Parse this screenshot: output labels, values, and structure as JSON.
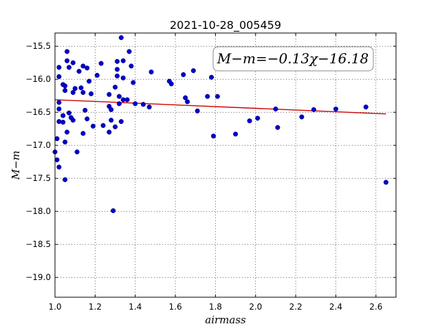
{
  "chart_data": {
    "type": "scatter",
    "title": "2021-10-28_005459",
    "xlabel": "airmass",
    "ylabel": "M−m",
    "xlim": [
      1.0,
      2.7
    ],
    "ylim": [
      -19.3,
      -15.3
    ],
    "y_inverted": true,
    "grid": true,
    "x_ticks": [
      1.0,
      1.2,
      1.4,
      1.6,
      1.8,
      2.0,
      2.2,
      2.4,
      2.6
    ],
    "x_tick_labels": [
      "1.0",
      "1.2",
      "1.4",
      "1.6",
      "1.8",
      "2.0",
      "2.2",
      "2.4",
      "2.6"
    ],
    "y_ticks": [
      -15.5,
      -16.0,
      -16.5,
      -17.0,
      -17.5,
      -18.0,
      -18.5,
      -19.0
    ],
    "y_tick_labels": [
      "−15.5",
      "−16.0",
      "−16.5",
      "−17.0",
      "−17.5",
      "−18.0",
      "−18.5",
      "−19.0"
    ],
    "annotation": "M−m=−0.13χ−16.18",
    "fit": {
      "slope": -0.13,
      "intercept": -16.18,
      "x_range": [
        1.0,
        2.65
      ],
      "color": "#cc0000"
    },
    "point_color": "#0000cc",
    "points": [
      [
        1.0,
        -17.1
      ],
      [
        1.01,
        -17.22
      ],
      [
        1.01,
        -16.9
      ],
      [
        1.02,
        -15.82
      ],
      [
        1.02,
        -15.96
      ],
      [
        1.02,
        -16.35
      ],
      [
        1.02,
        -16.45
      ],
      [
        1.02,
        -16.64
      ],
      [
        1.02,
        -17.33
      ],
      [
        1.04,
        -16.08
      ],
      [
        1.04,
        -16.65
      ],
      [
        1.04,
        -16.55
      ],
      [
        1.05,
        -16.1
      ],
      [
        1.05,
        -16.17
      ],
      [
        1.05,
        -17.52
      ],
      [
        1.05,
        -16.95
      ],
      [
        1.06,
        -15.58
      ],
      [
        1.06,
        -15.72
      ],
      [
        1.06,
        -16.8
      ],
      [
        1.07,
        -15.82
      ],
      [
        1.07,
        -16.51
      ],
      [
        1.08,
        -16.58
      ],
      [
        1.09,
        -16.62
      ],
      [
        1.09,
        -16.2
      ],
      [
        1.09,
        -15.75
      ],
      [
        1.1,
        -16.14
      ],
      [
        1.11,
        -17.1
      ],
      [
        1.12,
        -15.88
      ],
      [
        1.13,
        -16.13
      ],
      [
        1.14,
        -16.82
      ],
      [
        1.14,
        -15.8
      ],
      [
        1.14,
        -16.2
      ],
      [
        1.15,
        -16.47
      ],
      [
        1.16,
        -15.83
      ],
      [
        1.16,
        -16.6
      ],
      [
        1.17,
        -16.03
      ],
      [
        1.18,
        -16.22
      ],
      [
        1.19,
        -16.71
      ],
      [
        1.21,
        -15.94
      ],
      [
        1.23,
        -15.76
      ],
      [
        1.24,
        -16.7
      ],
      [
        1.27,
        -16.8
      ],
      [
        1.27,
        -16.23
      ],
      [
        1.27,
        -16.41
      ],
      [
        1.28,
        -16.46
      ],
      [
        1.28,
        -16.62
      ],
      [
        1.29,
        -17.99
      ],
      [
        1.3,
        -16.72
      ],
      [
        1.3,
        -16.12
      ],
      [
        1.31,
        -15.73
      ],
      [
        1.31,
        -15.85
      ],
      [
        1.31,
        -15.95
      ],
      [
        1.32,
        -16.37
      ],
      [
        1.32,
        -16.26
      ],
      [
        1.33,
        -16.64
      ],
      [
        1.33,
        -15.37
      ],
      [
        1.34,
        -15.72
      ],
      [
        1.34,
        -15.98
      ],
      [
        1.34,
        -16.31
      ],
      [
        1.36,
        -16.31
      ],
      [
        1.37,
        -15.58
      ],
      [
        1.38,
        -15.8
      ],
      [
        1.39,
        -16.05
      ],
      [
        1.4,
        -16.37
      ],
      [
        1.44,
        -16.38
      ],
      [
        1.47,
        -16.42
      ],
      [
        1.48,
        -15.89
      ],
      [
        1.57,
        -16.03
      ],
      [
        1.58,
        -16.07
      ],
      [
        1.64,
        -15.93
      ],
      [
        1.65,
        -16.28
      ],
      [
        1.66,
        -16.34
      ],
      [
        1.69,
        -15.87
      ],
      [
        1.71,
        -16.48
      ],
      [
        1.76,
        -16.26
      ],
      [
        1.78,
        -15.97
      ],
      [
        1.79,
        -16.86
      ],
      [
        1.81,
        -16.26
      ],
      [
        1.9,
        -16.83
      ],
      [
        1.97,
        -16.63
      ],
      [
        2.01,
        -16.59
      ],
      [
        2.1,
        -16.45
      ],
      [
        2.11,
        -16.73
      ],
      [
        2.23,
        -16.57
      ],
      [
        2.29,
        -16.46
      ],
      [
        2.4,
        -16.45
      ],
      [
        2.55,
        -16.42
      ],
      [
        2.65,
        -17.56
      ]
    ]
  }
}
